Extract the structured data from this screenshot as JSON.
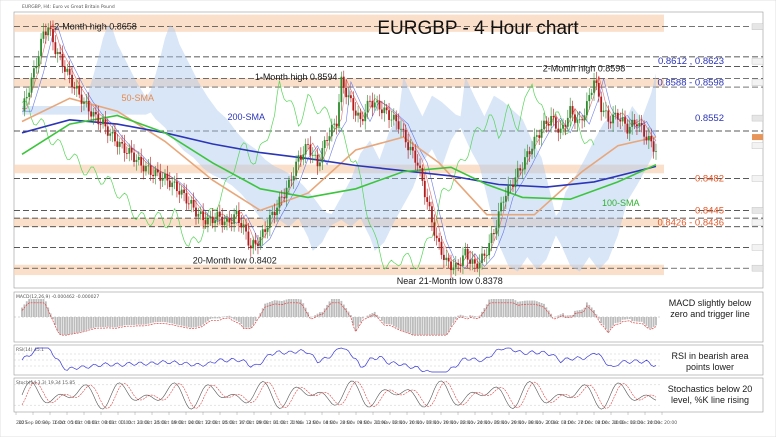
{
  "chart_data": {
    "type": "candlestick",
    "title": "EURGBP - 4 Hour chart",
    "symbol_caption": "EURGBP, H4: Euro vs Great Britain Pound",
    "ylim": [
      0.8355,
      0.8675
    ],
    "x_ticks": [
      "2021",
      "30 Sep 00:00",
      "30 Sep 16:00",
      "1 Oct 00:00",
      "5 Oct 00:00",
      "6 Oct 00:00",
      "8 Oct 00:00",
      "11 Oct 20:00",
      "13 Oct 20:00",
      "15 Oct 08:00",
      "19 Oct 04:00",
      "20 Oct 12:00",
      "22 Oct 00:00",
      "25 Oct 16:00",
      "27 Oct 08:00",
      "29 Oct 00:00",
      "31 Oct 20:00",
      "1 Nov 12:00",
      "3 Nov 08:00",
      "4 Nov 20:00",
      "8 Nov 08:00",
      "9 Nov 20:00",
      "11 Nov 08:00",
      "12 Nov 20:00",
      "16 Nov 08:00",
      "17 Nov 20:00",
      "19 Nov 08:00",
      "22 Nov 20:00",
      "24 Nov 08:00",
      "25 Nov 20:00",
      "29 Nov 08:00",
      "30 Nov 20:00",
      "2 Dec 08:00",
      "3 Dec 20:00",
      "7 Dec 08:00",
      "8 Dec 20:00",
      "10 Dec 08:00",
      "13 Dec 20:00",
      "14 Dec 20:00"
    ],
    "price_path": [
      [
        0,
        0.856
      ],
      [
        5,
        0.8605
      ],
      [
        9,
        0.865
      ],
      [
        11,
        0.8658
      ],
      [
        14,
        0.8632
      ],
      [
        18,
        0.861
      ],
      [
        22,
        0.8588
      ],
      [
        26,
        0.857
      ],
      [
        30,
        0.8555
      ],
      [
        34,
        0.8545
      ],
      [
        38,
        0.853
      ],
      [
        42,
        0.8518
      ],
      [
        46,
        0.851
      ],
      [
        50,
        0.8498
      ],
      [
        54,
        0.849
      ],
      [
        58,
        0.8485
      ],
      [
        62,
        0.8478
      ],
      [
        66,
        0.8468
      ],
      [
        70,
        0.8455
      ],
      [
        74,
        0.844
      ],
      [
        78,
        0.8432
      ],
      [
        82,
        0.8438
      ],
      [
        86,
        0.843
      ],
      [
        90,
        0.844
      ],
      [
        94,
        0.8418
      ],
      [
        96,
        0.8402
      ],
      [
        100,
        0.8412
      ],
      [
        104,
        0.8435
      ],
      [
        108,
        0.8455
      ],
      [
        112,
        0.8475
      ],
      [
        116,
        0.8505
      ],
      [
        120,
        0.852
      ],
      [
        124,
        0.8498
      ],
      [
        128,
        0.853
      ],
      [
        132,
        0.8548
      ],
      [
        134,
        0.8594
      ],
      [
        138,
        0.857
      ],
      [
        142,
        0.8548
      ],
      [
        146,
        0.8572
      ],
      [
        150,
        0.8565
      ],
      [
        154,
        0.8555
      ],
      [
        158,
        0.8545
      ],
      [
        162,
        0.852
      ],
      [
        166,
        0.85
      ],
      [
        170,
        0.8455
      ],
      [
        174,
        0.841
      ],
      [
        178,
        0.8385
      ],
      [
        182,
        0.8378
      ],
      [
        186,
        0.8395
      ],
      [
        190,
        0.838
      ],
      [
        194,
        0.8392
      ],
      [
        198,
        0.842
      ],
      [
        202,
        0.846
      ],
      [
        206,
        0.8478
      ],
      [
        210,
        0.8498
      ],
      [
        214,
        0.852
      ],
      [
        218,
        0.854
      ],
      [
        222,
        0.8552
      ],
      [
        226,
        0.8535
      ],
      [
        230,
        0.856
      ],
      [
        234,
        0.8545
      ],
      [
        238,
        0.8575
      ],
      [
        240,
        0.8598
      ],
      [
        243,
        0.8565
      ],
      [
        246,
        0.855
      ],
      [
        250,
        0.8555
      ],
      [
        254,
        0.854
      ],
      [
        258,
        0.8548
      ],
      [
        262,
        0.853
      ],
      [
        266,
        0.8515
      ]
    ],
    "series": [
      {
        "name": "50-SMA",
        "color": "#e8a77a",
        "points": [
          [
            0,
            0.8548
          ],
          [
            20,
            0.8575
          ],
          [
            40,
            0.856
          ],
          [
            60,
            0.8525
          ],
          [
            80,
            0.848
          ],
          [
            100,
            0.8445
          ],
          [
            120,
            0.8465
          ],
          [
            140,
            0.8515
          ],
          [
            160,
            0.853
          ],
          [
            175,
            0.85
          ],
          [
            195,
            0.844
          ],
          [
            215,
            0.844
          ],
          [
            235,
            0.849
          ],
          [
            250,
            0.852
          ],
          [
            266,
            0.853
          ]
        ]
      },
      {
        "name": "200-SMA",
        "color": "#2b35b8",
        "points": [
          [
            0,
            0.8535
          ],
          [
            20,
            0.855
          ],
          [
            40,
            0.8545
          ],
          [
            60,
            0.8535
          ],
          [
            80,
            0.8522
          ],
          [
            100,
            0.8512
          ],
          [
            120,
            0.8505
          ],
          [
            140,
            0.8497
          ],
          [
            160,
            0.8491
          ],
          [
            180,
            0.8485
          ],
          [
            200,
            0.8475
          ],
          [
            220,
            0.8472
          ],
          [
            240,
            0.8478
          ],
          [
            266,
            0.8496
          ]
        ]
      },
      {
        "name": "100-SMA",
        "color": "#3cc53c",
        "points": [
          [
            0,
            0.851
          ],
          [
            20,
            0.8545
          ],
          [
            40,
            0.8555
          ],
          [
            60,
            0.8535
          ],
          [
            80,
            0.85
          ],
          [
            100,
            0.847
          ],
          [
            120,
            0.846
          ],
          [
            140,
            0.847
          ],
          [
            160,
            0.849
          ],
          [
            180,
            0.8495
          ],
          [
            195,
            0.8475
          ],
          [
            210,
            0.846
          ],
          [
            230,
            0.8458
          ],
          [
            250,
            0.8478
          ],
          [
            266,
            0.8498
          ]
        ]
      }
    ],
    "levels": [
      {
        "label": "0.8612 , 0.8623",
        "value": 0.8618,
        "color": "#2b35b8",
        "zone": false
      },
      {
        "label": "0.8588 - 0.8598",
        "value": 0.8593,
        "color": "#2b35b8",
        "zone": true,
        "zone_low": 0.8588,
        "zone_high": 0.8598
      },
      {
        "label": "0.8552",
        "value": 0.8552,
        "color": "#2b35b8",
        "zone": false
      },
      {
        "label": "0.8482",
        "value": 0.8482,
        "color": "#e25a2a",
        "zone": false
      },
      {
        "label": "0.8445",
        "value": 0.8445,
        "color": "#e25a2a",
        "zone": false
      },
      {
        "label": "0.8426 - 0.8436",
        "value": 0.8431,
        "color": "#e25a2a",
        "zone": true,
        "zone_low": 0.8426,
        "zone_high": 0.8436
      }
    ],
    "annotations": [
      {
        "text": "2-Month high 0.8658",
        "x": 11,
        "y": 0.8658
      },
      {
        "text": "1-Month high 0.8594",
        "x": 134,
        "y": 0.8594
      },
      {
        "text": "2-Month high 0.8598",
        "x": 240,
        "y": 0.8598
      },
      {
        "text": "20-Month low 0.8402",
        "x": 96,
        "y": 0.8402
      },
      {
        "text": "Near 21-Month low 0.8378",
        "x": 182,
        "y": 0.8378
      },
      {
        "text": "50-SMA",
        "x": 30,
        "y": 0.856
      },
      {
        "text": "200-SMA",
        "x": 82,
        "y": 0.8535
      },
      {
        "text": "100-SMA",
        "x": 240,
        "y": 0.8458
      }
    ],
    "indicators": [
      {
        "name": "MACD",
        "caption": "MACD(12,26,9) -0.000462 -0.000027",
        "comment": [
          "MACD slightly below",
          "zero and trigger line"
        ]
      },
      {
        "name": "RSI",
        "caption": "RSI(14) 45.1",
        "comment": [
          "RSI in bearish area",
          "points lower"
        ]
      },
      {
        "name": "Stochastics",
        "caption": "Stoch(14,3,3) 19.34 15.85",
        "comment": [
          "Stochastics below 20",
          "level, %K line rising"
        ]
      }
    ]
  }
}
